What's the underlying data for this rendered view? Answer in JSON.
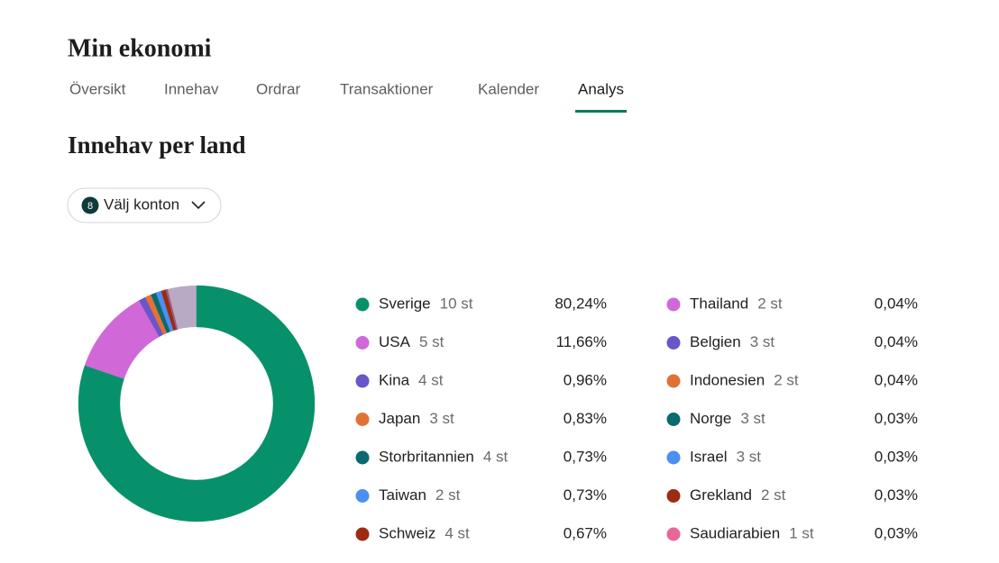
{
  "header": {
    "title": "Min ekonomi",
    "tabs": [
      "Översikt",
      "Innehav",
      "Ordrar",
      "Transaktioner",
      "Kalender",
      "Analys"
    ],
    "active_tab": 5
  },
  "section": {
    "title": "Innehav per land",
    "button": {
      "badge": "8",
      "label": "Välj konton"
    }
  },
  "chart_data": {
    "type": "donut",
    "categories": [
      "Sverige",
      "USA",
      "Kina",
      "Japan",
      "Storbritannien",
      "Taiwan",
      "Schweiz",
      "Thailand",
      "Belgien",
      "Indonesien",
      "Norge",
      "Israel",
      "Grekland",
      "Saudiarabien"
    ],
    "counts": [
      "10 st",
      "5 st",
      "4 st",
      "3 st",
      "4 st",
      "2 st",
      "4 st",
      "2 st",
      "3 st",
      "2 st",
      "3 st",
      "3 st",
      "2 st",
      "1 st"
    ],
    "values": [
      80.24,
      11.66,
      0.96,
      0.83,
      0.73,
      0.73,
      0.67,
      0.04,
      0.04,
      0.04,
      0.03,
      0.03,
      0.03,
      0.03
    ],
    "value_labels": [
      "80,24%",
      "11,66%",
      "0,96%",
      "0,83%",
      "0,73%",
      "0,73%",
      "0,67%",
      "0,04%",
      "0,04%",
      "0,04%",
      "0,03%",
      "0,03%",
      "0,03%",
      "0,03%"
    ],
    "colors": [
      "#07916a",
      "#d068d8",
      "#6a55c9",
      "#e07235",
      "#0b6a6f",
      "#4b8ff0",
      "#9c2b12",
      "#d068d8",
      "#6a55c9",
      "#e07235",
      "#0b6a6f",
      "#4b8ff0",
      "#9c2b12",
      "#e8669a"
    ]
  }
}
